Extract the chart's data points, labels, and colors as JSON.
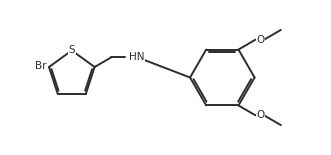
{
  "bg_color": "#ffffff",
  "line_color": "#2d2d2d",
  "bond_width": 1.4,
  "figsize": [
    3.31,
    1.55
  ],
  "dpi": 100,
  "xlim": [
    0,
    10.5
  ],
  "ylim": [
    0.2,
    5.2
  ],
  "tc_x": 2.2,
  "tc_y": 2.8,
  "r_thio": 0.78,
  "bc_x": 7.1,
  "bc_y": 2.7,
  "r_benz": 1.05,
  "s_ang": 90,
  "c2_ang": 18,
  "c3_ang": -54,
  "c4_ang": -126,
  "c5_ang": 162,
  "hex6_angles": [
    180,
    120,
    60,
    0,
    300,
    240
  ],
  "font_size": 7.5
}
